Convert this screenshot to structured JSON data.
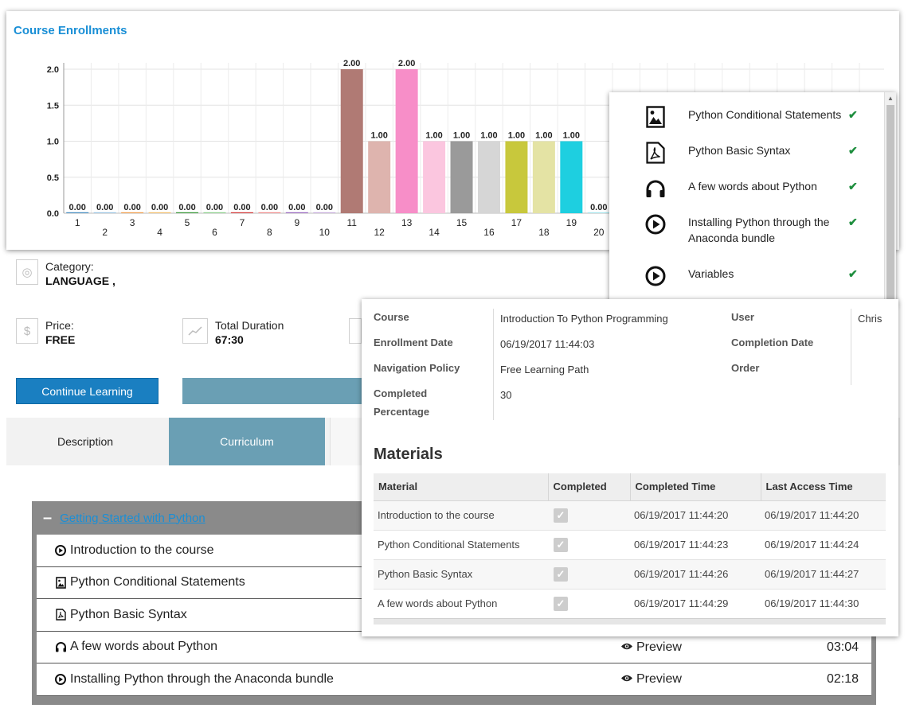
{
  "chart": {
    "title": "Course Enrollments"
  },
  "chart_data": {
    "type": "bar",
    "title": "Course Enrollments",
    "xlabel": "",
    "ylabel": "",
    "ylim": [
      0,
      2
    ],
    "yticks": [
      "0.0",
      "0.5",
      "1.0",
      "1.5",
      "2.0"
    ],
    "categories": [
      "1",
      "2",
      "3",
      "4",
      "5",
      "6",
      "7",
      "8",
      "9",
      "10",
      "11",
      "12",
      "13",
      "14",
      "15",
      "16",
      "17",
      "18",
      "19",
      "20"
    ],
    "values": [
      0,
      0,
      0,
      0,
      0,
      0,
      0,
      0,
      0,
      0,
      2,
      1,
      2,
      1,
      1,
      1,
      1,
      1,
      1,
      0
    ],
    "data_labels": [
      "0.00",
      "0.00",
      "0.00",
      "0.00",
      "0.00",
      "0.00",
      "0.00",
      "0.00",
      "0.00",
      "0.00",
      "2.00",
      "1.00",
      "2.00",
      "1.00",
      "1.00",
      "1.00",
      "1.00",
      "1.00",
      "1.00",
      "0.00"
    ],
    "colors": [
      "#4a90c2",
      "#9ec7e4",
      "#f0a050",
      "#f3c070",
      "#3c9a3c",
      "#8fd08f",
      "#d43c3c",
      "#f09090",
      "#9b6ac2",
      "#c9b0dd",
      "#b07a74",
      "#deb4ae",
      "#f78ec8",
      "#fbc6df",
      "#9a9a9a",
      "#d6d6d6",
      "#c8c83c",
      "#e4e3a4",
      "#1ecfe0",
      "#a9e6ee"
    ],
    "grid": true,
    "legend": "none"
  },
  "materials_list": {
    "items": [
      {
        "label": "Python Conditional Statements",
        "icon": "image-file-icon"
      },
      {
        "label": "Python Basic Syntax",
        "icon": "pdf-file-icon"
      },
      {
        "label": "A few words about Python",
        "icon": "headphones-icon"
      },
      {
        "label": "Installing Python through the Anaconda bundle",
        "icon": "play-circle-icon"
      },
      {
        "label": "Variables",
        "icon": "play-circle-icon"
      }
    ]
  },
  "course_info": {
    "category_label": "Category:",
    "category_value": "LANGUAGE ,",
    "price_label": "Price:",
    "price_value": "FREE",
    "duration_label": "Total Duration",
    "duration_value": "67:30",
    "continue_label": "Continue Learning",
    "tabs": {
      "description": "Description",
      "curriculum": "Curriculum"
    }
  },
  "curriculum": {
    "section_title": "Getting Started with Python",
    "lessons": [
      {
        "title": "Introduction to the course",
        "preview": "",
        "duration": ""
      },
      {
        "title": "Python Conditional Statements",
        "preview": "",
        "duration": ""
      },
      {
        "title": "Python Basic Syntax",
        "preview": "",
        "duration": ""
      },
      {
        "title": "A few words about Python",
        "preview": "Preview",
        "duration": "03:04"
      },
      {
        "title": "Installing Python through the Anaconda bundle",
        "preview": "Preview",
        "duration": "02:18"
      }
    ]
  },
  "enrollment": {
    "course_label": "Course",
    "course_value": "Introduction To Python Programming",
    "enrollment_date_label": "Enrollment Date",
    "enrollment_date_value": "06/19/2017 11:44:03",
    "navigation_policy_label": "Navigation Policy",
    "navigation_policy_value": "Free Learning Path",
    "completed_label_1": "Completed",
    "completed_label_2": "Percentage",
    "completed_value": "30",
    "user_label": "User",
    "user_value": "Chris",
    "completion_date_label": "Completion Date",
    "order_label": "Order",
    "materials_title": "Materials",
    "table_headers": [
      "Material",
      "Completed",
      "Completed Time",
      "Last Access Time"
    ],
    "rows": [
      {
        "material": "Introduction to the course",
        "completed_time": "06/19/2017 11:44:20",
        "last_access": "06/19/2017 11:44:20"
      },
      {
        "material": "Python Conditional Statements",
        "completed_time": "06/19/2017 11:44:23",
        "last_access": "06/19/2017 11:44:24"
      },
      {
        "material": "Python Basic Syntax",
        "completed_time": "06/19/2017 11:44:26",
        "last_access": "06/19/2017 11:44:27"
      },
      {
        "material": "A few words about Python",
        "completed_time": "06/19/2017 11:44:29",
        "last_access": "06/19/2017 11:44:30"
      }
    ]
  }
}
